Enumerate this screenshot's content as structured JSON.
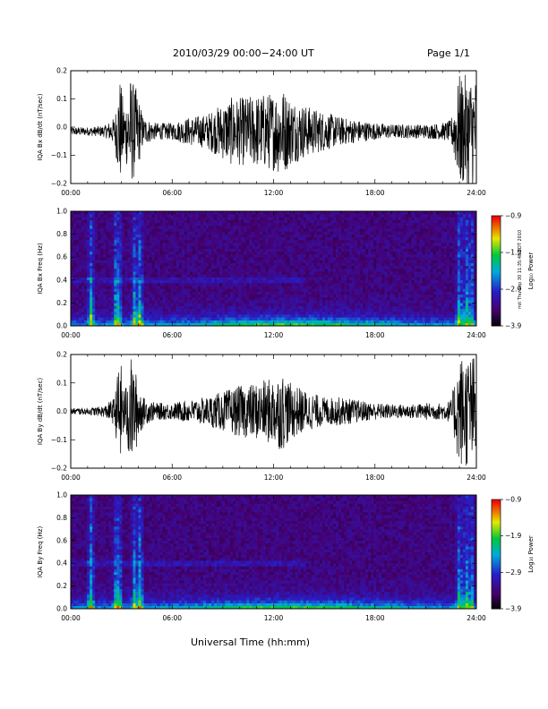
{
  "header": {
    "title": "2010/03/29  00:00−24:00 UT",
    "page": "Page 1/1"
  },
  "xaxis_label": "Universal Time (hh:mm)",
  "side_note": "mit Thu Sep 30 11:35:48 EDT 2010",
  "colorbar": {
    "ticks": [
      "−0.9",
      "−1.9",
      "−2.9",
      "−3.9"
    ],
    "label": "Log₁₀ Power"
  },
  "chart_data": [
    {
      "type": "line",
      "ylabel": "IQA Bx dB/dt (nT/sec)",
      "xticks": [
        "00:00",
        "06:00",
        "12:00",
        "18:00",
        "24:00"
      ],
      "xlim": [
        0,
        24
      ],
      "ylim": [
        -0.2,
        0.2
      ],
      "yticks": [
        "−0.2",
        "−0.1",
        "0.0",
        "0.1",
        "0.2"
      ],
      "series": [
        {
          "amplitude_envelope": {
            "x_hours": [
              0,
              1,
              2,
              2.6,
              2.9,
              3.2,
              3.5,
              3.9,
              4.3,
              5,
              6,
              7,
              8,
              9,
              9.5,
              10,
              11,
              12,
              12.5,
              13,
              14,
              15,
              16,
              17,
              18,
              19,
              20,
              21,
              22,
              22.5,
              23,
              23.5,
              24
            ],
            "amplitude": [
              0.015,
              0.015,
              0.02,
              0.05,
              0.2,
              0.08,
              0.2,
              0.15,
              0.05,
              0.03,
              0.03,
              0.05,
              0.06,
              0.1,
              0.12,
              0.12,
              0.13,
              0.14,
              0.16,
              0.12,
              0.09,
              0.07,
              0.05,
              0.04,
              0.03,
              0.025,
              0.025,
              0.025,
              0.03,
              0.04,
              0.2,
              0.2,
              0.2
            ]
          }
        }
      ]
    },
    {
      "type": "heatmap",
      "ylabel": "IQA Bx Freq (Hz)",
      "xticks": [
        "00:00",
        "06:00",
        "12:00",
        "18:00",
        "24:00"
      ],
      "xlim": [
        0,
        24
      ],
      "ylim": [
        0,
        1.0
      ],
      "yticks": [
        "0.0",
        "0.2",
        "0.4",
        "0.6",
        "0.8",
        "1.0"
      ],
      "zlim": [
        -3.9,
        -0.9
      ],
      "features": {
        "bursts_hours": [
          1.2,
          2.7,
          2.85,
          3.8,
          4.1,
          23.0,
          23.4,
          23.7
        ],
        "band_freq_hz": 0.4
      }
    },
    {
      "type": "line",
      "ylabel": "IQA By dB/dt (nT/sec)",
      "xticks": [
        "00:00",
        "06:00",
        "12:00",
        "18:00",
        "24:00"
      ],
      "xlim": [
        0,
        24
      ],
      "ylim": [
        -0.2,
        0.2
      ],
      "yticks": [
        "−0.2",
        "−0.1",
        "0.0",
        "0.1",
        "0.2"
      ],
      "series": [
        {
          "amplitude_envelope": {
            "x_hours": [
              0,
              1,
              2,
              2.6,
              2.9,
              3.2,
              3.5,
              3.9,
              4.3,
              5,
              6,
              7,
              8,
              9,
              9.5,
              10,
              11,
              12,
              12.5,
              13,
              14,
              15,
              16,
              17,
              18,
              19,
              20,
              21,
              22,
              22.5,
              23,
              23.5,
              24
            ],
            "amplitude": [
              0.012,
              0.012,
              0.02,
              0.05,
              0.2,
              0.07,
              0.2,
              0.13,
              0.05,
              0.03,
              0.03,
              0.04,
              0.05,
              0.07,
              0.08,
              0.09,
              0.1,
              0.12,
              0.14,
              0.1,
              0.07,
              0.05,
              0.05,
              0.04,
              0.03,
              0.025,
              0.025,
              0.03,
              0.03,
              0.04,
              0.2,
              0.2,
              0.2
            ]
          }
        }
      ]
    },
    {
      "type": "heatmap",
      "ylabel": "IQA By Freq (Hz)",
      "xticks": [
        "00:00",
        "06:00",
        "12:00",
        "18:00",
        "24:00"
      ],
      "xlim": [
        0,
        24
      ],
      "ylim": [
        0,
        1.0
      ],
      "yticks": [
        "0.0",
        "0.2",
        "0.4",
        "0.6",
        "0.8",
        "1.0"
      ],
      "zlim": [
        -3.9,
        -0.9
      ],
      "features": {
        "bursts_hours": [
          1.2,
          2.7,
          2.85,
          3.8,
          4.1,
          23.0,
          23.4,
          23.7
        ],
        "band_freq_hz": 0.4
      }
    }
  ]
}
